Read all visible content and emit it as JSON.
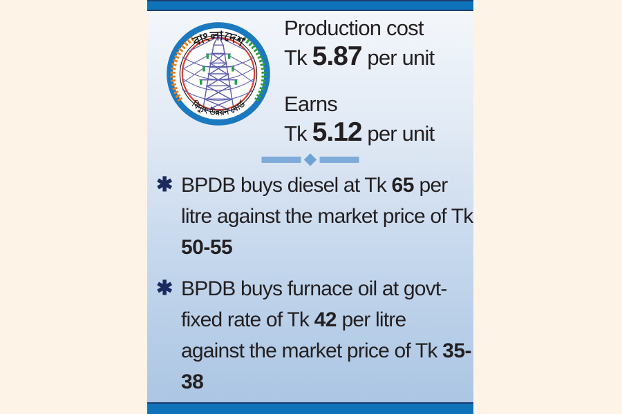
{
  "page": {
    "background_color": "#fdf3e7",
    "panel_bar_color": "#0e73b9",
    "panel_gradient_top": "#f5f8fc",
    "panel_gradient_bottom": "#a9c4e2",
    "divider_color": "#7fabd9",
    "text_color": "#231f20",
    "bullet_marker_color": "#1b2a5e"
  },
  "logo": {
    "name": "Bangladesh Power Development Board seal",
    "top_text": "বাংলাদেশ",
    "bottom_text": "বিদ্যুৎ উন্নয়ন বোর্ড",
    "ring_color": "#1b79c0",
    "inner_ring_color": "#e23b30",
    "pylon_color": "#5f5fae",
    "wheat_left_color": "#ee7d17",
    "wheat_right_color": "#2f9e41"
  },
  "stats": [
    {
      "label": "Production cost",
      "value_segments": [
        {
          "text": "Tk "
        },
        {
          "text": "5.87",
          "bold": true
        },
        {
          "text": " per unit"
        }
      ]
    },
    {
      "label": "Earns",
      "value_segments": [
        {
          "text": "Tk "
        },
        {
          "text": "5.12",
          "bold": true
        },
        {
          "text": " per unit"
        }
      ]
    }
  ],
  "bullets": {
    "glyph": "✱",
    "items": [
      {
        "segments": [
          {
            "text": "BPDB buys diesel at Tk "
          },
          {
            "text": "65",
            "bold": true
          },
          {
            "text": " per litre against the market price of Tk "
          },
          {
            "text": "50-55",
            "bold": true
          }
        ]
      },
      {
        "segments": [
          {
            "text": "BPDB buys furnace oil at govt-fixed rate of Tk "
          },
          {
            "text": "42",
            "bold": true
          },
          {
            "text": " per litre against the market price of Tk "
          },
          {
            "text": "35-38",
            "bold": true
          }
        ]
      }
    ]
  }
}
